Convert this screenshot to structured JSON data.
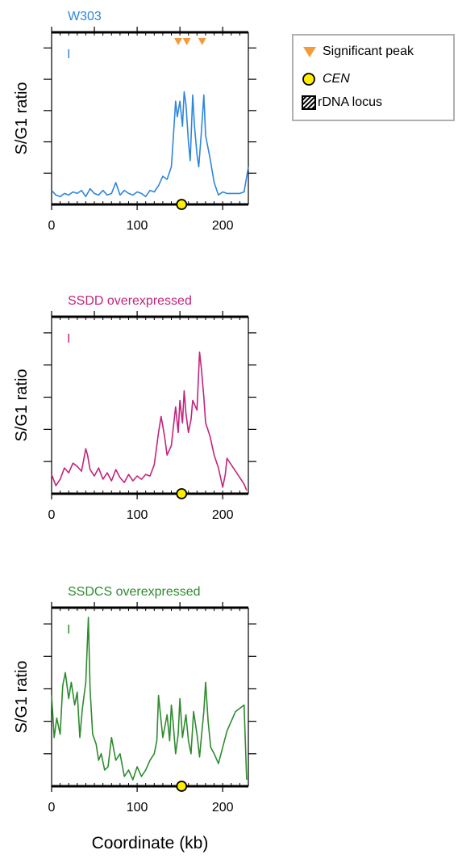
{
  "figure": {
    "xlabel": "Coordinate (kb)"
  },
  "legend": {
    "items": [
      {
        "label": "Significant peak",
        "symbol": "triangle-down-icon",
        "color": "#f29b3a"
      },
      {
        "label": "CEN",
        "symbol": "circle-icon",
        "color": "#ffee00"
      },
      {
        "label": "rDNA locus",
        "symbol": "hatched-square-icon",
        "color": "#000000"
      }
    ]
  },
  "chart_data": [
    {
      "type": "line",
      "title": "W303",
      "color": "#2e86de",
      "chromosome": "I",
      "ylabel": "S/G1 ratio",
      "xlim": [
        0,
        230
      ],
      "ylim": [
        0,
        5.5
      ],
      "xticks": [
        "0",
        "100",
        "200"
      ],
      "x": [
        0,
        5,
        10,
        15,
        20,
        25,
        30,
        35,
        40,
        45,
        50,
        55,
        60,
        65,
        70,
        75,
        80,
        85,
        90,
        95,
        100,
        105,
        110,
        115,
        120,
        125,
        130,
        135,
        140,
        142,
        145,
        147,
        150,
        153,
        155,
        157,
        160,
        162,
        165,
        167,
        170,
        172,
        175,
        178,
        180,
        185,
        190,
        195,
        200,
        205,
        210,
        215,
        220,
        225,
        230
      ],
      "y": [
        0.45,
        0.3,
        0.25,
        0.35,
        0.3,
        0.4,
        0.35,
        0.45,
        0.25,
        0.5,
        0.35,
        0.3,
        0.45,
        0.3,
        0.35,
        0.7,
        0.3,
        0.45,
        0.35,
        0.3,
        0.4,
        0.35,
        0.25,
        0.45,
        0.4,
        0.6,
        0.9,
        0.8,
        1.2,
        2.0,
        3.3,
        2.8,
        3.3,
        2.5,
        3.6,
        3.2,
        2.0,
        1.4,
        3.5,
        2.5,
        1.6,
        1.2,
        2.3,
        3.5,
        2.2,
        1.5,
        0.7,
        0.3,
        0.4,
        0.35,
        0.35,
        0.35,
        0.35,
        0.4,
        1.2
      ],
      "peaks": [
        148,
        158,
        176
      ],
      "cen": 152
    },
    {
      "type": "line",
      "title": "SSDD overexpressed",
      "color": "#c2247e",
      "chromosome": "I",
      "ylabel": "S/G1 ratio",
      "xlim": [
        0,
        230
      ],
      "ylim": [
        0,
        5.5
      ],
      "xticks": [
        "0",
        "100",
        "200"
      ],
      "x": [
        0,
        5,
        10,
        15,
        20,
        25,
        30,
        35,
        40,
        42,
        45,
        50,
        55,
        60,
        65,
        70,
        75,
        80,
        85,
        90,
        95,
        100,
        105,
        110,
        115,
        120,
        125,
        128,
        132,
        135,
        140,
        145,
        148,
        150,
        153,
        155,
        157,
        160,
        163,
        165,
        170,
        173,
        175,
        178,
        180,
        185,
        190,
        195,
        200,
        203,
        205,
        210,
        215,
        220,
        225,
        228
      ],
      "y": [
        0.6,
        0.25,
        0.45,
        0.8,
        0.65,
        0.95,
        0.85,
        0.7,
        1.4,
        1.2,
        0.75,
        0.55,
        0.8,
        0.45,
        0.65,
        0.4,
        0.75,
        0.5,
        0.35,
        0.6,
        0.4,
        0.55,
        0.45,
        0.6,
        0.55,
        0.9,
        1.9,
        2.4,
        1.8,
        1.2,
        1.5,
        2.7,
        1.9,
        2.9,
        2.2,
        3.2,
        2.5,
        1.9,
        2.3,
        2.9,
        2.6,
        4.4,
        3.9,
        3.0,
        2.2,
        1.8,
        1.2,
        0.8,
        0.2,
        0.6,
        1.1,
        0.9,
        0.7,
        0.5,
        0.3,
        0.1
      ],
      "cen": 152
    },
    {
      "type": "line",
      "title": "SSDCS overexpressed",
      "color": "#2e8b2e",
      "chromosome": "I",
      "ylabel": "S/G1 ratio",
      "xlim": [
        0,
        230
      ],
      "ylim": [
        0,
        5.5
      ],
      "xticks": [
        "0",
        "100",
        "200"
      ],
      "x": [
        0,
        3,
        6,
        10,
        13,
        16,
        20,
        23,
        27,
        30,
        33,
        36,
        40,
        43,
        45,
        48,
        52,
        55,
        58,
        62,
        66,
        70,
        75,
        80,
        85,
        90,
        95,
        100,
        105,
        110,
        115,
        120,
        123,
        125,
        128,
        130,
        135,
        138,
        140,
        142,
        145,
        148,
        150,
        153,
        157,
        160,
        163,
        166,
        170,
        173,
        175,
        178,
        180,
        183,
        186,
        190,
        195,
        200,
        205,
        210,
        215,
        220,
        225,
        228
      ],
      "y": [
        2.8,
        1.5,
        2.1,
        1.6,
        3.1,
        3.5,
        2.7,
        3.2,
        2.5,
        2.9,
        1.5,
        2.4,
        3.2,
        5.2,
        3.0,
        1.6,
        1.3,
        0.8,
        1.0,
        0.5,
        0.6,
        1.5,
        0.8,
        1.0,
        0.3,
        0.5,
        0.2,
        0.6,
        0.3,
        0.5,
        0.8,
        1.0,
        1.4,
        2.8,
        2.0,
        1.5,
        2.2,
        1.4,
        2.5,
        2.0,
        1.0,
        1.6,
        2.7,
        1.5,
        2.2,
        1.4,
        1.0,
        2.3,
        1.6,
        0.9,
        1.5,
        2.3,
        3.2,
        2.0,
        1.2,
        1.0,
        0.7,
        1.2,
        1.7,
        2.0,
        2.3,
        2.4,
        2.5,
        0.2
      ],
      "cen": 152
    }
  ]
}
